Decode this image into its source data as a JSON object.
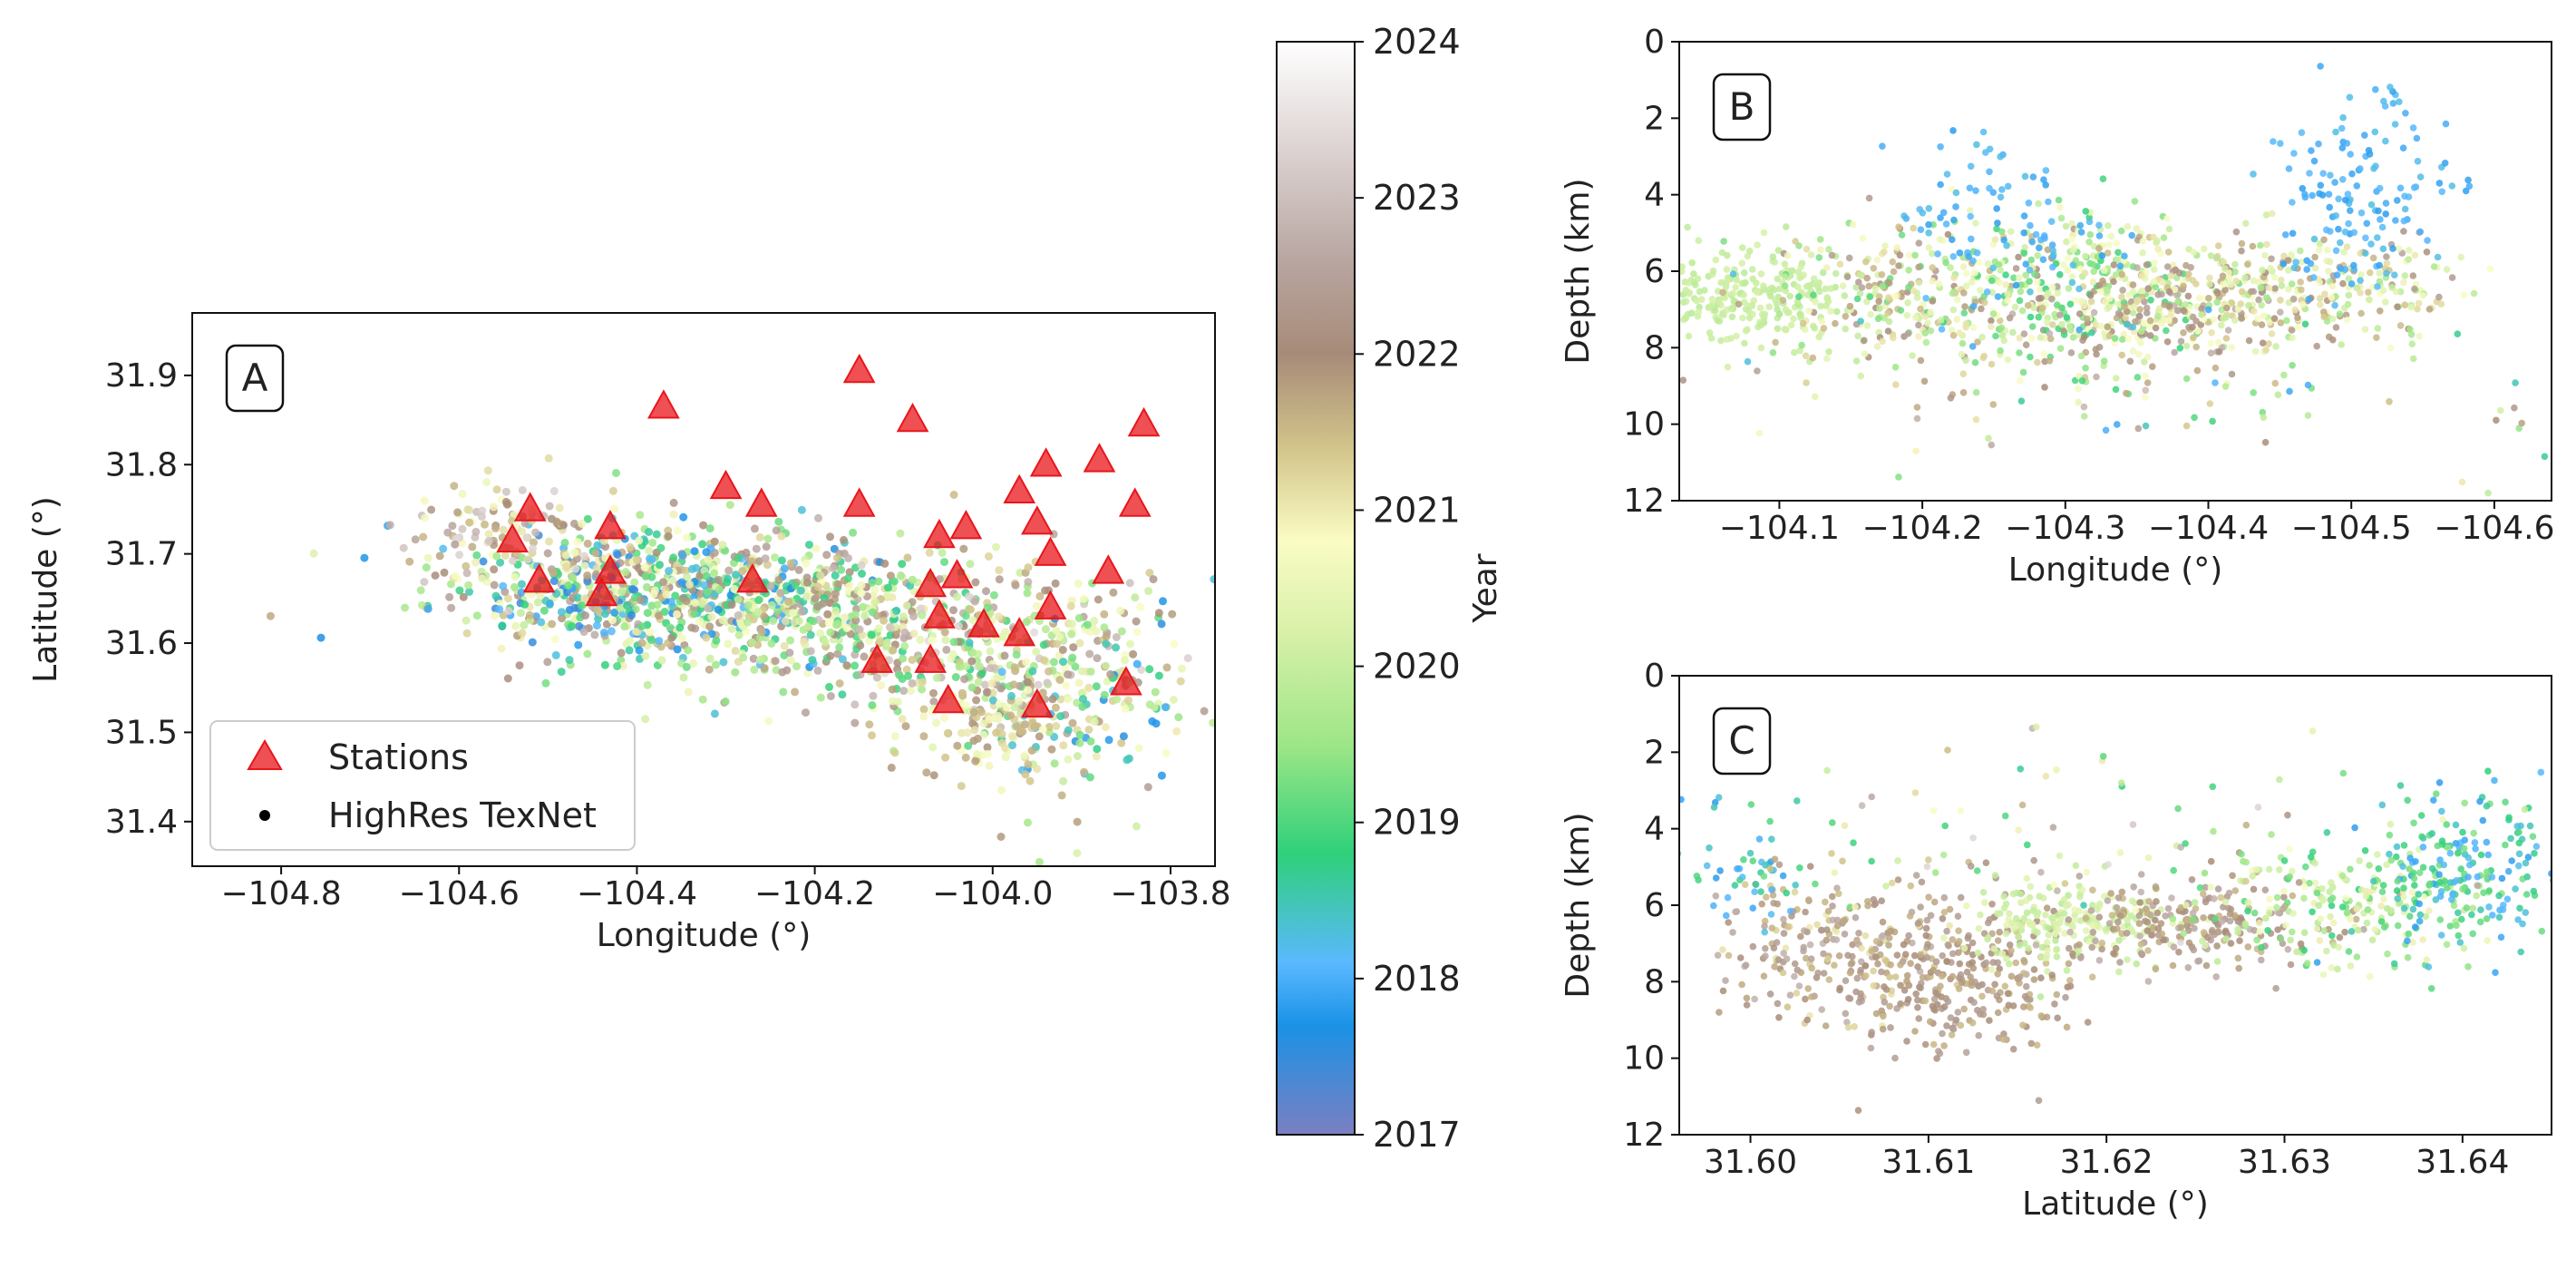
{
  "chart_data": [
    {
      "panel": "A",
      "type": "scatter",
      "panel_label": "A",
      "xlabel": "Longitude (°)",
      "ylabel": "Latitude (°)",
      "xlim": [
        -104.9,
        -103.75
      ],
      "ylim": [
        31.35,
        31.97
      ],
      "x_ticks": [
        -104.8,
        -104.6,
        -104.4,
        -104.2,
        -104.0,
        -103.8
      ],
      "x_tick_labels": [
        "−104.8",
        "−104.6",
        "−104.4",
        "−104.2",
        "−104.0",
        "−103.8"
      ],
      "y_ticks": [
        31.4,
        31.5,
        31.6,
        31.7,
        31.8,
        31.9
      ],
      "y_tick_labels": [
        "31.4",
        "31.5",
        "31.6",
        "31.7",
        "31.8",
        "31.9"
      ],
      "legend": {
        "position": "lower-left",
        "entries": [
          {
            "label": "Stations",
            "marker": "triangle",
            "color": "#e8161b"
          },
          {
            "label": "HighRes TexNet",
            "marker": "dot",
            "color": "#000000"
          }
        ]
      },
      "series": [
        {
          "name": "Stations",
          "marker": "triangle",
          "color": "#e8161b",
          "points": [
            [
              -104.54,
              31.715
            ],
            [
              -104.52,
              31.75
            ],
            [
              -104.51,
              31.67
            ],
            [
              -104.44,
              31.655
            ],
            [
              -104.43,
              31.68
            ],
            [
              -104.43,
              31.73
            ],
            [
              -104.37,
              31.865
            ],
            [
              -104.3,
              31.775
            ],
            [
              -104.27,
              31.67
            ],
            [
              -104.26,
              31.755
            ],
            [
              -104.15,
              31.905
            ],
            [
              -104.15,
              31.755
            ],
            [
              -104.13,
              31.58
            ],
            [
              -104.09,
              31.85
            ],
            [
              -104.07,
              31.665
            ],
            [
              -104.07,
              31.58
            ],
            [
              -104.06,
              31.72
            ],
            [
              -104.06,
              31.63
            ],
            [
              -104.05,
              31.535
            ],
            [
              -104.04,
              31.675
            ],
            [
              -104.03,
              31.73
            ],
            [
              -104.01,
              31.62
            ],
            [
              -103.97,
              31.77
            ],
            [
              -103.97,
              31.61
            ],
            [
              -103.95,
              31.735
            ],
            [
              -103.95,
              31.53
            ],
            [
              -103.94,
              31.8
            ],
            [
              -103.935,
              31.7
            ],
            [
              -103.935,
              31.64
            ],
            [
              -103.88,
              31.805
            ],
            [
              -103.87,
              31.68
            ],
            [
              -103.85,
              31.555
            ],
            [
              -103.84,
              31.755
            ],
            [
              -103.83,
              31.845
            ]
          ]
        },
        {
          "name": "HighRes TexNet",
          "marker": "dot",
          "color_by": "year",
          "clusters": [
            {
              "x": -104.45,
              "y": 31.66,
              "sx": 0.09,
              "sy": 0.035,
              "n": 450,
              "year": [
                2017.3,
                2022.8
              ]
            },
            {
              "x": -104.3,
              "y": 31.65,
              "sx": 0.08,
              "sy": 0.04,
              "n": 380,
              "year": [
                2017.5,
                2022.5
              ]
            },
            {
              "x": -104.15,
              "y": 31.63,
              "sx": 0.08,
              "sy": 0.04,
              "n": 320,
              "year": [
                2018.5,
                2023.0
              ]
            },
            {
              "x": -104.0,
              "y": 31.58,
              "sx": 0.07,
              "sy": 0.05,
              "n": 280,
              "year": [
                2019.0,
                2023.5
              ]
            },
            {
              "x": -103.9,
              "y": 31.55,
              "sx": 0.06,
              "sy": 0.07,
              "n": 200,
              "year": [
                2017.5,
                2022.5
              ]
            },
            {
              "x": -104.55,
              "y": 31.72,
              "sx": 0.05,
              "sy": 0.03,
              "n": 120,
              "year": [
                2020.5,
                2023.5
              ]
            },
            {
              "x": -104.0,
              "y": 31.5,
              "sx": 0.06,
              "sy": 0.03,
              "n": 90,
              "year": [
                2020.5,
                2022.0
              ]
            }
          ]
        }
      ]
    },
    {
      "panel": "B",
      "type": "scatter",
      "panel_label": "B",
      "xlabel": "Longitude (°)",
      "ylabel": "Depth (km)",
      "xlim": [
        -104.03,
        -104.64
      ],
      "ylim": [
        12,
        0
      ],
      "x_ticks": [
        -104.1,
        -104.2,
        -104.3,
        -104.4,
        -104.5,
        -104.6
      ],
      "x_tick_labels": [
        "−104.1",
        "−104.2",
        "−104.3",
        "−104.4",
        "−104.5",
        "−104.6"
      ],
      "y_ticks": [
        0,
        2,
        4,
        6,
        8,
        10,
        12
      ],
      "y_tick_labels": [
        "0",
        "2",
        "4",
        "6",
        "8",
        "10",
        "12"
      ],
      "series": [
        {
          "name": "HighRes TexNet",
          "marker": "dot",
          "color_by": "year",
          "clusters": [
            {
              "x": -104.08,
              "y": 6.7,
              "sx": 0.04,
              "sy": 0.6,
              "n": 260,
              "year": [
                2019.8,
                2020.2
              ]
            },
            {
              "x": -104.2,
              "y": 6.6,
              "sx": 0.06,
              "sy": 1.0,
              "n": 300,
              "year": [
                2019.0,
                2022.5
              ]
            },
            {
              "x": -104.32,
              "y": 6.5,
              "sx": 0.05,
              "sy": 1.0,
              "n": 300,
              "year": [
                2018.8,
                2021.0
              ]
            },
            {
              "x": -104.38,
              "y": 6.8,
              "sx": 0.05,
              "sy": 0.7,
              "n": 250,
              "year": [
                2020.5,
                2022.8
              ]
            },
            {
              "x": -104.48,
              "y": 6.5,
              "sx": 0.05,
              "sy": 0.8,
              "n": 220,
              "year": [
                2019.5,
                2022.5
              ]
            },
            {
              "x": -104.26,
              "y": 4.5,
              "sx": 0.04,
              "sy": 1.0,
              "n": 90,
              "year": [
                2017.8,
                2018.3
              ]
            },
            {
              "x": -104.51,
              "y": 4.0,
              "sx": 0.03,
              "sy": 1.3,
              "n": 140,
              "year": [
                2017.8,
                2018.3
              ]
            },
            {
              "x": -104.35,
              "y": 8.5,
              "sx": 0.15,
              "sy": 1.2,
              "n": 120,
              "year": [
                2017.8,
                2023.0
              ]
            }
          ]
        }
      ]
    },
    {
      "panel": "C",
      "type": "scatter",
      "panel_label": "C",
      "xlabel": "Latitude (°)",
      "ylabel": "Depth (km)",
      "xlim": [
        31.596,
        31.645
      ],
      "ylim": [
        12,
        0
      ],
      "x_ticks": [
        31.6,
        31.61,
        31.62,
        31.63,
        31.64
      ],
      "x_tick_labels": [
        "31.60",
        "31.61",
        "31.62",
        "31.63",
        "31.64"
      ],
      "y_ticks": [
        0,
        2,
        4,
        6,
        8,
        10,
        12
      ],
      "y_tick_labels": [
        "0",
        "2",
        "4",
        "6",
        "8",
        "10",
        "12"
      ],
      "series": [
        {
          "name": "HighRes TexNet",
          "marker": "dot",
          "color_by": "year",
          "clusters": [
            {
              "x": 31.605,
              "y": 7.3,
              "sx": 0.004,
              "sy": 1.0,
              "n": 250,
              "year": [
                2021.0,
                2022.8
              ]
            },
            {
              "x": 31.612,
              "y": 7.8,
              "sx": 0.003,
              "sy": 1.0,
              "n": 260,
              "year": [
                2021.5,
                2022.5
              ]
            },
            {
              "x": 31.618,
              "y": 6.5,
              "sx": 0.003,
              "sy": 0.5,
              "n": 200,
              "year": [
                2019.8,
                2020.5
              ]
            },
            {
              "x": 31.625,
              "y": 6.5,
              "sx": 0.004,
              "sy": 0.6,
              "n": 220,
              "year": [
                2021.5,
                2022.8
              ]
            },
            {
              "x": 31.633,
              "y": 6.0,
              "sx": 0.004,
              "sy": 0.8,
              "n": 220,
              "year": [
                2018.8,
                2021.0
              ]
            },
            {
              "x": 31.64,
              "y": 5.0,
              "sx": 0.003,
              "sy": 1.0,
              "n": 200,
              "year": [
                2017.8,
                2019.5
              ]
            },
            {
              "x": 31.6,
              "y": 5.0,
              "sx": 0.002,
              "sy": 1.0,
              "n": 50,
              "year": [
                2017.8,
                2019.2
              ]
            },
            {
              "x": 31.62,
              "y": 4.0,
              "sx": 0.012,
              "sy": 1.2,
              "n": 80,
              "year": [
                2018.5,
                2023.5
              ]
            }
          ]
        }
      ]
    },
    {
      "type": "colorbar",
      "label": "Year",
      "range": [
        2017,
        2024
      ],
      "ticks": [
        2017,
        2018,
        2019,
        2020,
        2021,
        2022,
        2023,
        2024
      ],
      "tick_labels": [
        "2017",
        "2018",
        "2019",
        "2020",
        "2021",
        "2022",
        "2023",
        "2024"
      ],
      "stops": [
        {
          "year": 2017.0,
          "color": "#7b7fc1"
        },
        {
          "year": 2017.7,
          "color": "#1a92e6"
        },
        {
          "year": 2018.1,
          "color": "#5ab9ff"
        },
        {
          "year": 2018.8,
          "color": "#2fd07a"
        },
        {
          "year": 2019.5,
          "color": "#9ee687"
        },
        {
          "year": 2020.2,
          "color": "#d7f0a8"
        },
        {
          "year": 2020.8,
          "color": "#fafcc4"
        },
        {
          "year": 2021.4,
          "color": "#d2c48a"
        },
        {
          "year": 2022.0,
          "color": "#a78b78"
        },
        {
          "year": 2022.6,
          "color": "#b8a6a1"
        },
        {
          "year": 2023.3,
          "color": "#dcd2d1"
        },
        {
          "year": 2024.0,
          "color": "#ffffff"
        }
      ]
    }
  ]
}
